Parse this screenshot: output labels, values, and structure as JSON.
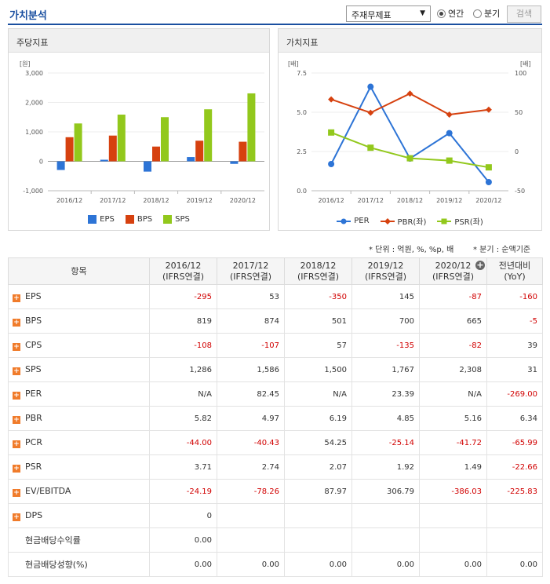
{
  "header": {
    "title": "가치분석",
    "select_value": "주재무제표",
    "radio_annual": "연간",
    "radio_quarter": "분기",
    "search_button": "검색"
  },
  "panels": {
    "left_title": "주당지표",
    "right_title": "가치지표"
  },
  "notes": {
    "unit": "* 단위 : 억원, %, %p, 배",
    "basis": "* 분기 : 순액기준"
  },
  "colors": {
    "EPS": "#2d74d6",
    "BPS": "#d6410f",
    "SPS": "#92c81c",
    "PER": "#2d74d6",
    "PBR": "#d6410f",
    "PSR": "#92c81c"
  },
  "chart_data": [
    {
      "type": "bar",
      "ylabel": "[원]",
      "categories": [
        "2016/12",
        "2017/12",
        "2018/12",
        "2019/12",
        "2020/12"
      ],
      "ylim": [
        -1000,
        3000
      ],
      "yticks": [
        -1000,
        0,
        1000,
        2000,
        3000
      ],
      "ytick_labels": [
        "-1,000",
        "0",
        "1,000",
        "2,000",
        "3,000"
      ],
      "series": [
        {
          "name": "EPS",
          "values": [
            -295,
            53,
            -350,
            145,
            -87
          ]
        },
        {
          "name": "BPS",
          "values": [
            819,
            874,
            501,
            700,
            665
          ]
        },
        {
          "name": "SPS",
          "values": [
            1286,
            1586,
            1500,
            1767,
            2308
          ]
        }
      ],
      "grid": true,
      "legend": "bottom"
    },
    {
      "type": "line",
      "ylabel_left": "[배]",
      "ylabel_right": "[배]",
      "categories": [
        "2016/12",
        "2017/12",
        "2018/12",
        "2019/12",
        "2020/12"
      ],
      "ylim_left": [
        0,
        7.5
      ],
      "yticks_left": [
        "0.0",
        "2.5",
        "5.0",
        "7.5"
      ],
      "ylim_right": [
        -50,
        100
      ],
      "yticks_right": [
        "-50",
        "0",
        "50",
        "100"
      ],
      "series": [
        {
          "name": "PER",
          "axis": "right",
          "values": [
            -16,
            82.45,
            -9,
            23.39,
            -39
          ]
        },
        {
          "name": "PBR(좌)",
          "axis": "left",
          "values": [
            5.82,
            4.97,
            6.19,
            4.85,
            5.16
          ]
        },
        {
          "name": "PSR(좌)",
          "axis": "left",
          "values": [
            3.71,
            2.74,
            2.07,
            1.92,
            1.49
          ]
        }
      ],
      "grid": true,
      "legend": "bottom"
    }
  ],
  "table": {
    "headers": [
      {
        "l1": "항목",
        "l2": ""
      },
      {
        "l1": "2016/12",
        "l2": "(IFRS연결)"
      },
      {
        "l1": "2017/12",
        "l2": "(IFRS연결)"
      },
      {
        "l1": "2018/12",
        "l2": "(IFRS연결)"
      },
      {
        "l1": "2019/12",
        "l2": "(IFRS연결)"
      },
      {
        "l1": "2020/12",
        "l2": "(IFRS연결)"
      },
      {
        "l1": "전년대비",
        "l2": "(YoY)"
      }
    ],
    "rows": [
      {
        "label": "EPS",
        "icon": true,
        "cells": [
          "-295",
          "53",
          "-350",
          "145",
          "-87",
          "-160"
        ]
      },
      {
        "label": "BPS",
        "icon": true,
        "cells": [
          "819",
          "874",
          "501",
          "700",
          "665",
          "-5"
        ]
      },
      {
        "label": "CPS",
        "icon": true,
        "cells": [
          "-108",
          "-107",
          "57",
          "-135",
          "-82",
          "39"
        ]
      },
      {
        "label": "SPS",
        "icon": true,
        "cells": [
          "1,286",
          "1,586",
          "1,500",
          "1,767",
          "2,308",
          "31"
        ]
      },
      {
        "label": "PER",
        "icon": true,
        "cells": [
          "N/A",
          "82.45",
          "N/A",
          "23.39",
          "N/A",
          "-269.00"
        ]
      },
      {
        "label": "PBR",
        "icon": true,
        "cells": [
          "5.82",
          "4.97",
          "6.19",
          "4.85",
          "5.16",
          "6.34"
        ]
      },
      {
        "label": "PCR",
        "icon": true,
        "cells": [
          "-44.00",
          "-40.43",
          "54.25",
          "-25.14",
          "-41.72",
          "-65.99"
        ]
      },
      {
        "label": "PSR",
        "icon": true,
        "cells": [
          "3.71",
          "2.74",
          "2.07",
          "1.92",
          "1.49",
          "-22.66"
        ]
      },
      {
        "label": "EV/EBITDA",
        "icon": true,
        "cells": [
          "-24.19",
          "-78.26",
          "87.97",
          "306.79",
          "-386.03",
          "-225.83"
        ]
      },
      {
        "label": "DPS",
        "icon": true,
        "cells": [
          "0",
          "",
          "",
          "",
          "",
          ""
        ]
      },
      {
        "label": "현금배당수익률",
        "icon": false,
        "cells": [
          "0.00",
          "",
          "",
          "",
          "",
          ""
        ]
      },
      {
        "label": "현금배당성향(%)",
        "icon": false,
        "cells": [
          "0.00",
          "0.00",
          "0.00",
          "0.00",
          "0.00",
          "0.00"
        ]
      }
    ]
  }
}
